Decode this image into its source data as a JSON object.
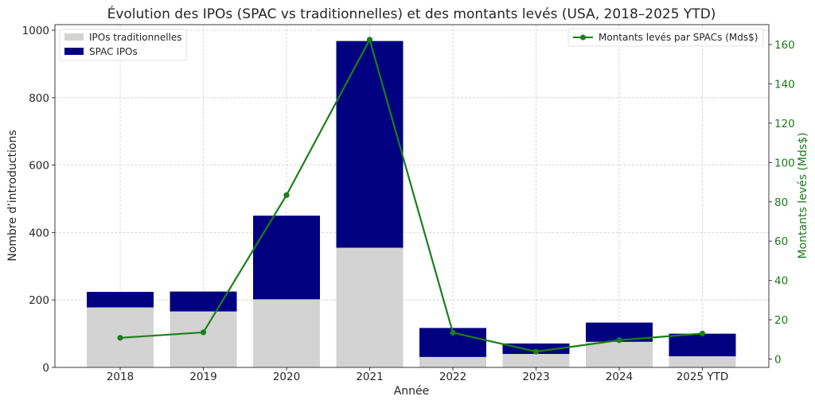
{
  "chart_data": {
    "type": "bar",
    "title": "Évolution des IPOs (SPAC vs traditionnelles) et des montants levés (USA, 2018–2025 YTD)",
    "xlabel": "Année",
    "ylabel": "Nombre d’introductions",
    "ylabel_right": "Montants levés (Mds$)",
    "categories": [
      "2018",
      "2019",
      "2020",
      "2021",
      "2022",
      "2023",
      "2024",
      "2025 YTD"
    ],
    "ylim": [
      0,
      1000
    ],
    "ylim_right": [
      -5,
      170
    ],
    "yticks": [
      0,
      200,
      400,
      600,
      800,
      1000
    ],
    "yticks_right": [
      0,
      20,
      40,
      60,
      80,
      100,
      120,
      140,
      160
    ],
    "grid": true,
    "stacked": true,
    "series": [
      {
        "name": "IPOs traditionnelles",
        "kind": "bar",
        "color": "#d3d3d3",
        "values": [
          178,
          166,
          202,
          355,
          31,
          40,
          76,
          33
        ]
      },
      {
        "name": "SPAC IPOs",
        "kind": "bar",
        "color": "#000080",
        "values": [
          46,
          59,
          248,
          613,
          86,
          31,
          57,
          67
        ]
      },
      {
        "name": "Montants levés par SPACs (Mds$)",
        "kind": "line",
        "axis": "right",
        "color": "#1a7f1a",
        "values": [
          10.8,
          13.6,
          83.4,
          162.5,
          13.4,
          3.8,
          9.6,
          13.0
        ]
      }
    ],
    "legend_left": "top-left",
    "legend_right": "top-right"
  }
}
